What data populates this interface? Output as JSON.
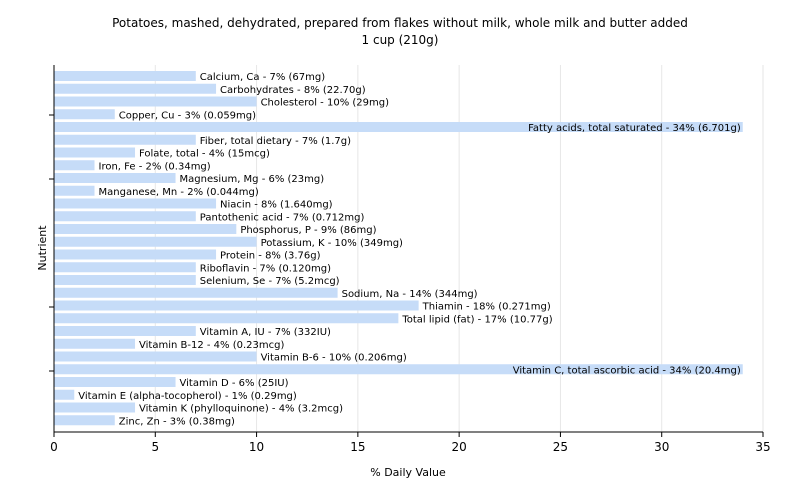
{
  "chart_data": {
    "type": "bar",
    "orientation": "horizontal",
    "title": "Potatoes, mashed, dehydrated, prepared from flakes without milk, whole milk and butter added",
    "subtitle": "1 cup (210g)",
    "xlabel": "% Daily Value",
    "ylabel": "Nutrient",
    "xlim": [
      0,
      35
    ],
    "xticks": [
      0,
      5,
      10,
      15,
      20,
      25,
      30,
      35
    ],
    "grid": true,
    "bar_color": "#c6dcf8",
    "categories": [
      "Calcium, Ca",
      "Carbohydrates",
      "Cholesterol",
      "Copper, Cu",
      "Fatty acids, total saturated",
      "Fiber, total dietary",
      "Folate, total",
      "Iron, Fe",
      "Magnesium, Mg",
      "Manganese, Mn",
      "Niacin",
      "Pantothenic acid",
      "Phosphorus, P",
      "Potassium, K",
      "Protein",
      "Riboflavin",
      "Selenium, Se",
      "Sodium, Na",
      "Thiamin",
      "Total lipid (fat)",
      "Vitamin A, IU",
      "Vitamin B-12",
      "Vitamin B-6",
      "Vitamin C, total ascorbic acid",
      "Vitamin D",
      "Vitamin E (alpha-tocopherol)",
      "Vitamin K (phylloquinone)",
      "Zinc, Zn"
    ],
    "values": [
      7,
      8,
      10,
      3,
      34,
      7,
      4,
      2,
      6,
      2,
      8,
      7,
      9,
      10,
      8,
      7,
      7,
      14,
      18,
      17,
      7,
      4,
      10,
      34,
      6,
      1,
      4,
      3
    ],
    "labels": [
      "Calcium, Ca - 7% (67mg)",
      "Carbohydrates - 8% (22.70g)",
      "Cholesterol - 10% (29mg)",
      "Copper, Cu - 3% (0.059mg)",
      "Fatty acids, total saturated - 34% (6.701g)",
      "Fiber, total dietary - 7% (1.7g)",
      "Folate, total - 4% (15mcg)",
      "Iron, Fe - 2% (0.34mg)",
      "Magnesium, Mg - 6% (23mg)",
      "Manganese, Mn - 2% (0.044mg)",
      "Niacin - 8% (1.640mg)",
      "Pantothenic acid - 7% (0.712mg)",
      "Phosphorus, P - 9% (86mg)",
      "Potassium, K - 10% (349mg)",
      "Protein - 8% (3.76g)",
      "Riboflavin - 7% (0.120mg)",
      "Selenium, Se - 7% (5.2mcg)",
      "Sodium, Na - 14% (344mg)",
      "Thiamin - 18% (0.271mg)",
      "Total lipid (fat) - 17% (10.77g)",
      "Vitamin A, IU - 7% (332IU)",
      "Vitamin B-12 - 4% (0.23mcg)",
      "Vitamin B-6 - 10% (0.206mg)",
      "Vitamin C, total ascorbic acid - 34% (20.4mg)",
      "Vitamin D - 6% (25IU)",
      "Vitamin E (alpha-tocopherol) - 1% (0.29mg)",
      "Vitamin K (phylloquinone) - 4% (3.2mcg)",
      "Zinc, Zn - 3% (0.38mg)"
    ]
  }
}
